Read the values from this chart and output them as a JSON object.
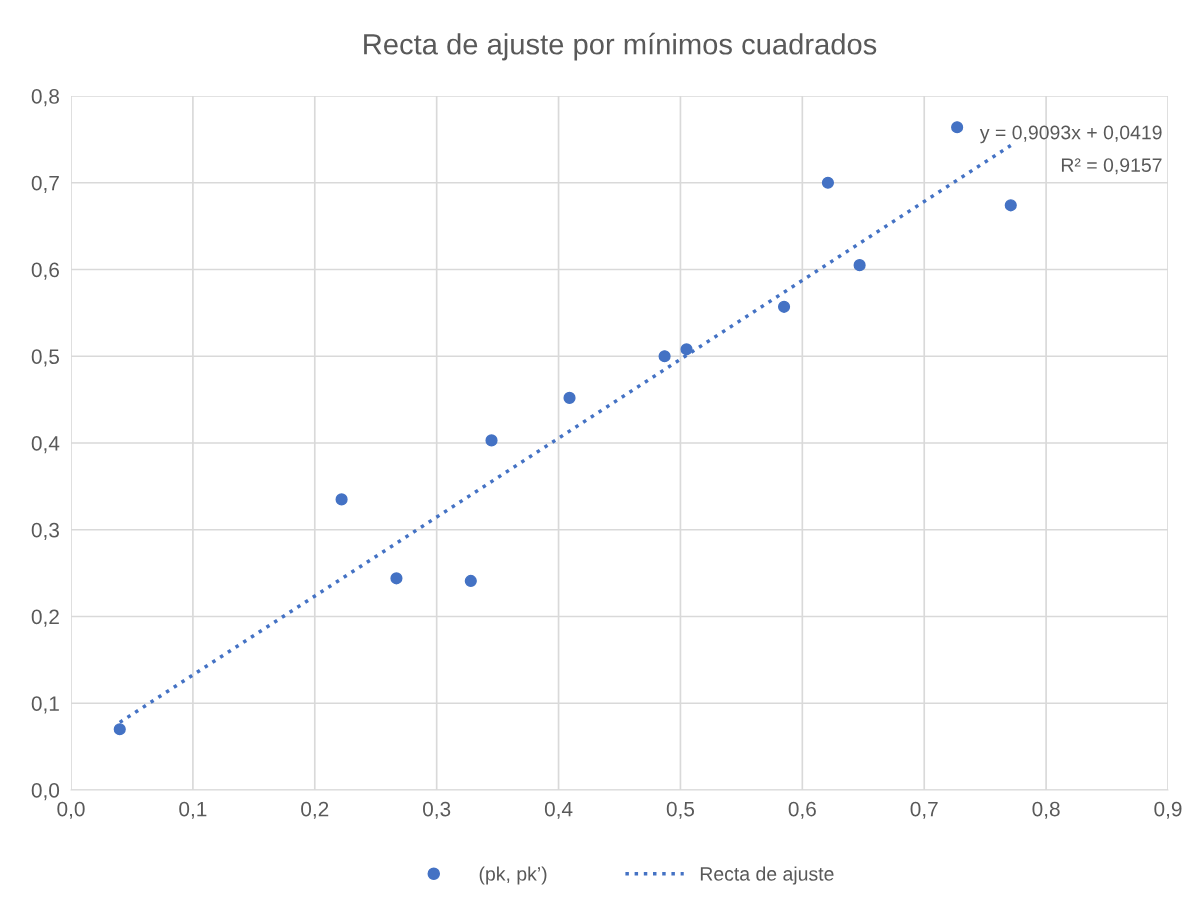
{
  "chart_data": {
    "type": "scatter",
    "title": "Recta de ajuste por mínimos cuadrados",
    "series": [
      {
        "name": "(pk, pk’)",
        "color": "#4472c4",
        "marker": "circle",
        "x": [
          0.04,
          0.222,
          0.267,
          0.328,
          0.345,
          0.409,
          0.487,
          0.505,
          0.585,
          0.621,
          0.647,
          0.727,
          0.771
        ],
        "values": [
          0.07,
          0.335,
          0.244,
          0.241,
          0.403,
          0.452,
          0.5,
          0.508,
          0.557,
          0.7,
          0.605,
          0.764,
          0.674
        ]
      },
      {
        "name": "Recta de ajuste",
        "type": "line",
        "color": "#4472c4",
        "line_style": "dotted",
        "marker": "none",
        "x": [
          0.04,
          0.771
        ],
        "values": [
          0.078,
          0.743
        ]
      }
    ],
    "annotations": [
      "y = 0,9093x + 0,0419",
      "R² = 0,9157"
    ],
    "xlim": [
      0,
      0.9
    ],
    "ylim": [
      0,
      0.8
    ],
    "xticks": [
      {
        "value": 0,
        "label": "0,0"
      },
      {
        "value": 0.1,
        "label": "0,1"
      },
      {
        "value": 0.2,
        "label": "0,2"
      },
      {
        "value": 0.3,
        "label": "0,3"
      },
      {
        "value": 0.4,
        "label": "0,4"
      },
      {
        "value": 0.5,
        "label": "0,5"
      },
      {
        "value": 0.6,
        "label": "0,6"
      },
      {
        "value": 0.7,
        "label": "0,7"
      },
      {
        "value": 0.8,
        "label": "0,8"
      },
      {
        "value": 0.9,
        "label": "0,9"
      }
    ],
    "yticks": [
      {
        "value": 0,
        "label": "0,0"
      },
      {
        "value": 0.1,
        "label": "0,1"
      },
      {
        "value": 0.2,
        "label": "0,2"
      },
      {
        "value": 0.3,
        "label": "0,3"
      },
      {
        "value": 0.4,
        "label": "0,4"
      },
      {
        "value": 0.5,
        "label": "0,5"
      },
      {
        "value": 0.6,
        "label": "0,6"
      },
      {
        "value": 0.7,
        "label": "0,7"
      },
      {
        "value": 0.8,
        "label": "0,8"
      }
    ],
    "grid": true,
    "legend": "bottom"
  }
}
